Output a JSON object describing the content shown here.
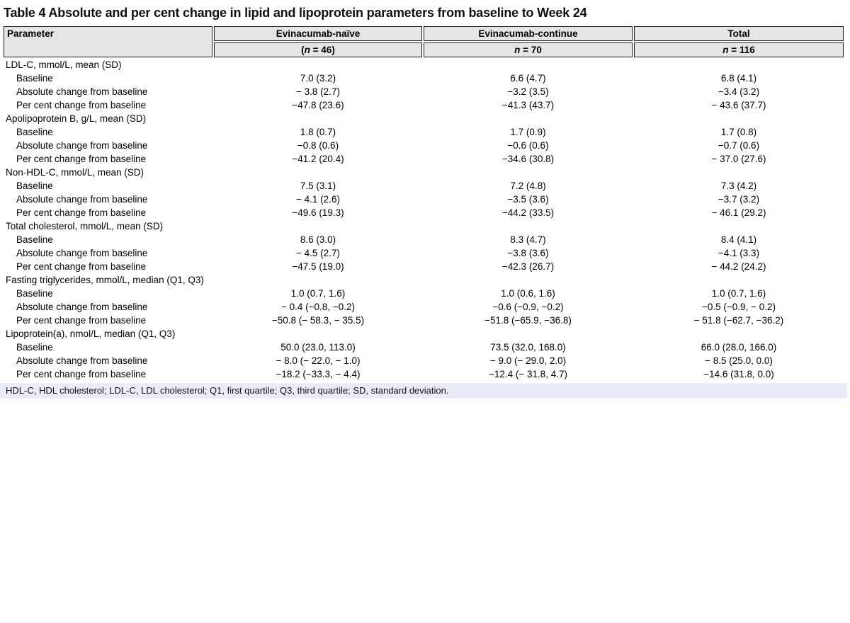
{
  "title": "Table 4 Absolute and per cent change in lipid and lipoprotein parameters from baseline to Week 24",
  "colors": {
    "header_bg": "#e5e5e5",
    "header_border": "#1c1c1c",
    "footnote_bg": "#eaecf8",
    "text": "#000000"
  },
  "header": {
    "parameter_label": "Parameter",
    "groups": [
      {
        "label": "Evinacumab-naïve",
        "n_pre": "(",
        "n_char": "n",
        "n_post": " = 46)"
      },
      {
        "label": "Evinacumab-continue",
        "n_pre": "",
        "n_char": "n",
        "n_post": " = 70"
      },
      {
        "label": "Total",
        "n_pre": "",
        "n_char": "n",
        "n_post": " = 116"
      }
    ]
  },
  "table": {
    "sections": [
      {
        "header": "LDL-C, mmol/L, mean (SD)",
        "rows": [
          {
            "label": "Baseline",
            "values": [
              "7.0 (3.2)",
              "6.6 (4.7)",
              "6.8 (4.1)"
            ]
          },
          {
            "label": "Absolute change from baseline",
            "values": [
              "− 3.8 (2.7)",
              "−3.2 (3.5)",
              "−3.4 (3.2)"
            ]
          },
          {
            "label": "Per cent change from baseline",
            "values": [
              "−47.8 (23.6)",
              "−41.3 (43.7)",
              "− 43.6 (37.7)"
            ]
          }
        ]
      },
      {
        "header": "Apolipoprotein B, g/L, mean (SD)",
        "rows": [
          {
            "label": "Baseline",
            "values": [
              "1.8 (0.7)",
              "1.7 (0.9)",
              "1.7 (0.8)"
            ]
          },
          {
            "label": "Absolute change from baseline",
            "values": [
              "−0.8 (0.6)",
              "−0.6 (0.6)",
              "−0.7 (0.6)"
            ]
          },
          {
            "label": "Per cent change from baseline",
            "values": [
              "−41.2 (20.4)",
              "−34.6 (30.8)",
              "− 37.0 (27.6)"
            ]
          }
        ]
      },
      {
        "header": "Non-HDL-C, mmol/L, mean (SD)",
        "rows": [
          {
            "label": "Baseline",
            "values": [
              "7.5 (3.1)",
              "7.2 (4.8)",
              "7.3 (4.2)"
            ]
          },
          {
            "label": "Absolute change from baseline",
            "values": [
              "− 4.1 (2.6)",
              "−3.5 (3.6)",
              "−3.7 (3.2)"
            ]
          },
          {
            "label": "Per cent change from baseline",
            "values": [
              "−49.6 (19.3)",
              "−44.2 (33.5)",
              "− 46.1 (29.2)"
            ]
          }
        ]
      },
      {
        "header": "Total cholesterol, mmol/L, mean (SD)",
        "rows": [
          {
            "label": "Baseline",
            "values": [
              "8.6 (3.0)",
              "8.3 (4.7)",
              "8.4 (4.1)"
            ]
          },
          {
            "label": "Absolute change from baseline",
            "values": [
              "− 4.5 (2.7)",
              "−3.8 (3.6)",
              "−4.1 (3.3)"
            ]
          },
          {
            "label": "Per cent change from baseline",
            "values": [
              "−47.5 (19.0)",
              "−42.3 (26.7)",
              "− 44.2 (24.2)"
            ]
          }
        ]
      },
      {
        "header": "Fasting triglycerides, mmol/L, median (Q1, Q3)",
        "rows": [
          {
            "label": "Baseline",
            "values": [
              "1.0 (0.7, 1.6)",
              "1.0 (0.6, 1.6)",
              "1.0 (0.7, 1.6)"
            ]
          },
          {
            "label": "Absolute change from baseline",
            "values": [
              "− 0.4 (−0.8, −0.2)",
              "−0.6 (−0.9, −0.2)",
              "−0.5 (−0.9, − 0.2)"
            ]
          },
          {
            "label": "Per cent change from baseline",
            "values": [
              "−50.8 (− 58.3, − 35.5)",
              "−51.8 (−65.9, −36.8)",
              "− 51.8 (−62.7, −36.2)"
            ]
          }
        ]
      },
      {
        "header": "Lipoprotein(a), nmol/L, median (Q1, Q3)",
        "rows": [
          {
            "label": "Baseline",
            "values": [
              "50.0 (23.0, 113.0)",
              "73.5 (32.0, 168.0)",
              "66.0 (28.0, 166.0)"
            ]
          },
          {
            "label": "Absolute change from baseline",
            "values": [
              "− 8.0 (− 22.0, − 1.0)",
              "− 9.0 (− 29.0, 2.0)",
              "− 8.5 (25.0, 0.0)"
            ]
          },
          {
            "label": "Per cent change from baseline",
            "values": [
              "−18.2 (−33.3, − 4.4)",
              "−12.4 (− 31.8, 4.7)",
              "−14.6 (31.8, 0.0)"
            ]
          }
        ]
      }
    ]
  },
  "footnote": "HDL-C, HDL cholesterol; LDL-C, LDL cholesterol; Q1, first quartile; Q3, third quartile; SD, standard deviation."
}
